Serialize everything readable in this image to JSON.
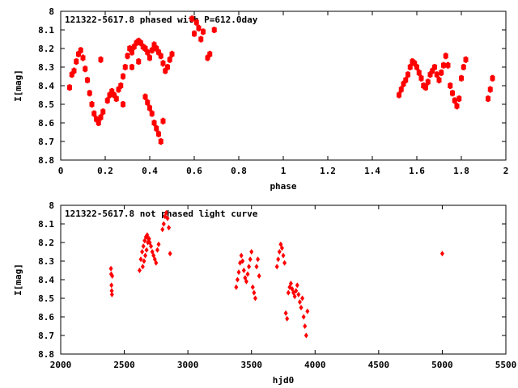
{
  "chart_data": [
    {
      "type": "scatter",
      "title": "121322-5617.8 phased with P=612.0day",
      "xlabel": "phase",
      "ylabel": "I[mag]",
      "xlim": [
        0,
        2
      ],
      "ylim": [
        8.8,
        8.0
      ],
      "y_inverted": true,
      "x_ticks": [
        "0",
        "0.2",
        "0.4",
        "0.6",
        "0.8",
        "1",
        "1.2",
        "1.4",
        "1.6",
        "1.8",
        "2"
      ],
      "y_ticks": [
        "8",
        "8.1",
        "8.2",
        "8.3",
        "8.4",
        "8.5",
        "8.6",
        "8.7",
        "8.8"
      ],
      "marker_color": "#ff0000",
      "grid": false,
      "series": [
        {
          "x": [
            0.04,
            0.05,
            0.06,
            0.07,
            0.08,
            0.09,
            0.1,
            0.11,
            0.12,
            0.13,
            0.14,
            0.15,
            0.16,
            0.17,
            0.18,
            0.19,
            0.21,
            0.22,
            0.23,
            0.24,
            0.25,
            0.26,
            0.27,
            0.28,
            0.29,
            0.3,
            0.31,
            0.32,
            0.33,
            0.34,
            0.35,
            0.36,
            0.37,
            0.38,
            0.39,
            0.4,
            0.41,
            0.42,
            0.43,
            0.44,
            0.45,
            0.46,
            0.47,
            0.48,
            0.49,
            0.5,
            0.38,
            0.39,
            0.4,
            0.41,
            0.42,
            0.43,
            0.44,
            0.45,
            0.46,
            0.18,
            0.28,
            0.32,
            0.35,
            0.59,
            0.6,
            0.61,
            0.62,
            0.63,
            0.64,
            0.66,
            0.67,
            0.69,
            1.52,
            1.53,
            1.54,
            1.55,
            1.56,
            1.57,
            1.58,
            1.59,
            1.6,
            1.61,
            1.62,
            1.63,
            1.64,
            1.65,
            1.66,
            1.67,
            1.68,
            1.69,
            1.7,
            1.71,
            1.72,
            1.73,
            1.74,
            1.75,
            1.76,
            1.77,
            1.78,
            1.79,
            1.8,
            1.81,
            1.82,
            1.92,
            1.93,
            1.94
          ],
          "y": [
            8.41,
            8.34,
            8.32,
            8.27,
            8.23,
            8.21,
            8.25,
            8.31,
            8.37,
            8.44,
            8.5,
            8.55,
            8.58,
            8.6,
            8.57,
            8.54,
            8.48,
            8.45,
            8.43,
            8.45,
            8.47,
            8.42,
            8.4,
            8.35,
            8.3,
            8.24,
            8.2,
            8.22,
            8.19,
            8.17,
            8.16,
            8.17,
            8.19,
            8.2,
            8.22,
            8.25,
            8.21,
            8.18,
            8.2,
            8.22,
            8.24,
            8.28,
            8.32,
            8.3,
            8.26,
            8.23,
            8.46,
            8.49,
            8.52,
            8.55,
            8.6,
            8.63,
            8.66,
            8.7,
            8.59,
            8.26,
            8.5,
            8.3,
            8.27,
            8.04,
            8.12,
            8.06,
            8.09,
            8.15,
            8.11,
            8.25,
            8.23,
            8.1,
            8.45,
            8.42,
            8.39,
            8.37,
            8.34,
            8.3,
            8.27,
            8.28,
            8.3,
            8.33,
            8.36,
            8.4,
            8.41,
            8.38,
            8.34,
            8.32,
            8.3,
            8.34,
            8.37,
            8.33,
            8.29,
            8.24,
            8.29,
            8.4,
            8.44,
            8.48,
            8.51,
            8.47,
            8.36,
            8.3,
            8.26,
            8.47,
            8.42,
            8.36
          ]
        }
      ]
    },
    {
      "type": "scatter",
      "title": "121322-5617.8 not phased light curve",
      "xlabel": "hjd0",
      "ylabel": "I[mag]",
      "xlim": [
        2000,
        5500
      ],
      "ylim": [
        8.8,
        8.0
      ],
      "y_inverted": true,
      "x_ticks": [
        "2000",
        "2500",
        "3000",
        "3500",
        "4000",
        "4500",
        "5000",
        "5500"
      ],
      "y_ticks": [
        "8",
        "8.1",
        "8.2",
        "8.3",
        "8.4",
        "8.5",
        "8.6",
        "8.7",
        "8.8"
      ],
      "marker_color": "#ff0000",
      "grid": false,
      "series": [
        {
          "x": [
            2395,
            2397,
            2399,
            2401,
            2403,
            2405,
            2620,
            2630,
            2640,
            2650,
            2660,
            2670,
            2680,
            2690,
            2700,
            2710,
            2720,
            2730,
            2740,
            2750,
            2760,
            2770,
            2645,
            2655,
            2665,
            2675,
            2685,
            2695,
            2800,
            2810,
            2820,
            2830,
            2840,
            2850,
            2860,
            3380,
            3390,
            3400,
            3410,
            3420,
            3430,
            3440,
            3450,
            3460,
            3470,
            3480,
            3490,
            3500,
            3510,
            3520,
            3530,
            3540,
            3550,
            3560,
            3700,
            3710,
            3720,
            3730,
            3740,
            3750,
            3760,
            3770,
            3780,
            3790,
            3800,
            3810,
            3820,
            3830,
            3840,
            3850,
            3860,
            3870,
            3880,
            3890,
            3900,
            3910,
            3920,
            3930,
            3940,
            5000
          ],
          "y": [
            8.34,
            8.37,
            8.43,
            8.46,
            8.48,
            8.38,
            8.35,
            8.29,
            8.25,
            8.22,
            8.19,
            8.17,
            8.16,
            8.18,
            8.2,
            8.22,
            8.25,
            8.27,
            8.29,
            8.31,
            8.24,
            8.21,
            8.33,
            8.3,
            8.27,
            8.24,
            8.2,
            8.18,
            8.13,
            8.1,
            8.06,
            8.04,
            8.07,
            8.12,
            8.26,
            8.44,
            8.4,
            8.36,
            8.31,
            8.27,
            8.3,
            8.35,
            8.39,
            8.41,
            8.37,
            8.33,
            8.29,
            8.25,
            8.44,
            8.47,
            8.5,
            8.33,
            8.29,
            8.38,
            8.33,
            8.29,
            8.25,
            8.21,
            8.23,
            8.27,
            8.31,
            8.58,
            8.61,
            8.47,
            8.44,
            8.42,
            8.45,
            8.47,
            8.49,
            8.46,
            8.43,
            8.48,
            8.52,
            8.55,
            8.5,
            8.6,
            8.65,
            8.7,
            8.57,
            8.26
          ]
        }
      ]
    }
  ]
}
